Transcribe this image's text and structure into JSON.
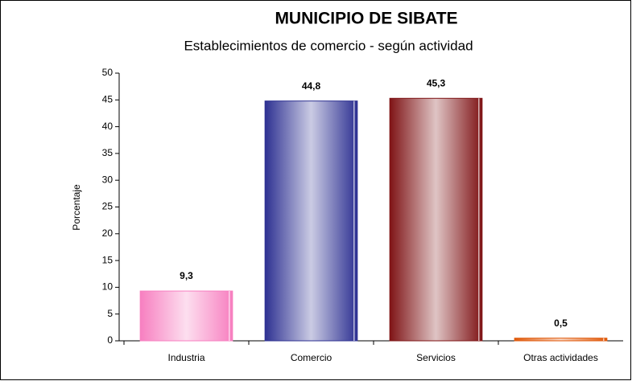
{
  "chart_data": {
    "type": "bar",
    "title": "MUNICIPIO DE SIBATE",
    "subtitle": "Establecimientos de comercio - según actividad",
    "y_label": "Porcentaje",
    "categories": [
      "Industria",
      "Comercio",
      "Servicios",
      "Otras actividades"
    ],
    "values": [
      9.3,
      44.8,
      45.3,
      0.5
    ],
    "value_labels": [
      "9,3",
      "44,8",
      "45,3",
      "0,5"
    ],
    "colors": [
      "#f77fc0",
      "#2e3192",
      "#7f1416",
      "#e05a0c"
    ],
    "ylim": [
      0,
      50
    ],
    "yticks": [
      0,
      5,
      10,
      15,
      20,
      25,
      30,
      35,
      40,
      45,
      50
    ],
    "grid": false
  }
}
